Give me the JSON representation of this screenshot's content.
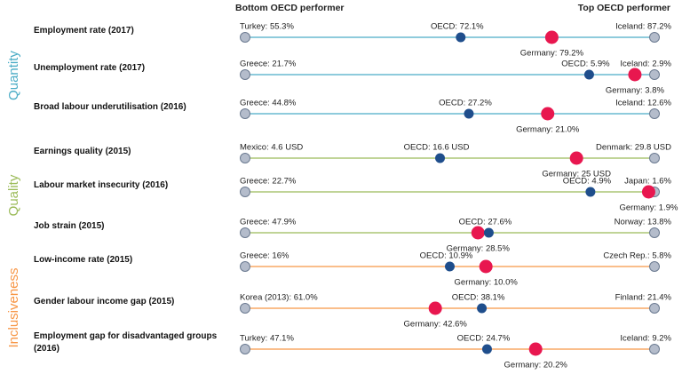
{
  "chart_data": {
    "type": "dot-range",
    "header_left": "Bottom OECD performer",
    "header_right": "Top OECD performer",
    "end_color": "#b4bccb",
    "oecd_color": "#1f4e8c",
    "germany_color": "#e8174f",
    "groups": [
      {
        "name": "Quantity",
        "color": "#4bacc6",
        "rows": [
          {
            "label": "Employment rate (2017)",
            "values": [
              55.3,
              72.1,
              79.2,
              87.2
            ],
            "value_labels": [
              "Turkey: 55.3%",
              "OECD: 72.1%",
              "Germany: 79.2%",
              "Iceland: 87.2%"
            ]
          },
          {
            "label": "Unemployment rate (2017)",
            "values": [
              21.7,
              5.9,
              3.8,
              2.9
            ],
            "value_labels": [
              "Greece: 21.7%",
              "OECD: 5.9%",
              "Germany: 3.8%",
              "Iceland: 2.9%"
            ]
          },
          {
            "label": "Broad labour underutilisation (2016)",
            "values": [
              44.8,
              27.2,
              21.0,
              12.6
            ],
            "value_labels": [
              "Greece: 44.8%",
              "OECD: 27.2%",
              "Germany: 21.0%",
              "Iceland: 12.6%"
            ]
          }
        ]
      },
      {
        "name": "Quality",
        "color": "#9bbb59",
        "rows": [
          {
            "label": "Earnings quality  (2015)",
            "values": [
              4.6,
              16.6,
              25,
              29.8
            ],
            "value_labels": [
              "Mexico: 4.6 USD",
              "OECD: 16.6 USD",
              "Germany: 25 USD",
              "Denmark: 29.8 USD"
            ]
          },
          {
            "label": "Labour market insecurity  (2016)",
            "values": [
              22.7,
              4.9,
              1.9,
              1.6
            ],
            "value_labels": [
              "Greece: 22.7%",
              "OECD: 4.9%",
              "Germany: 1.9%",
              "Japan: 1.6%"
            ]
          },
          {
            "label": "Job strain  (2015)",
            "values": [
              47.9,
              27.6,
              28.5,
              13.8
            ],
            "value_labels": [
              "Greece: 47.9%",
              "OECD: 27.6%",
              "Germany: 28.5%",
              "Norway: 13.8%"
            ]
          }
        ]
      },
      {
        "name": "Inclusiveness",
        "color": "#f79646",
        "rows": [
          {
            "label": "Low-income rate  (2015)",
            "values": [
              16,
              10.9,
              10.0,
              5.8
            ],
            "value_labels": [
              "Greece: 16%",
              "OECD: 10.9%",
              "Germany: 10.0%",
              "Czech Rep.: 5.8%"
            ]
          },
          {
            "label": "Gender labour income gap (2015)",
            "values": [
              61.0,
              38.1,
              42.6,
              21.4
            ],
            "value_labels": [
              "Korea (2013): 61.0%",
              "OECD: 38.1%",
              "Germany: 42.6%",
              "Finland: 21.4%"
            ]
          },
          {
            "label": "Employment gap for disadvantaged groups (2016)",
            "values": [
              47.1,
              24.7,
              20.2,
              9.2
            ],
            "value_labels": [
              "Turkey: 47.1%",
              "OECD: 24.7%",
              "Germany: 20.2%",
              "Iceland: 9.2%"
            ]
          }
        ]
      }
    ]
  }
}
